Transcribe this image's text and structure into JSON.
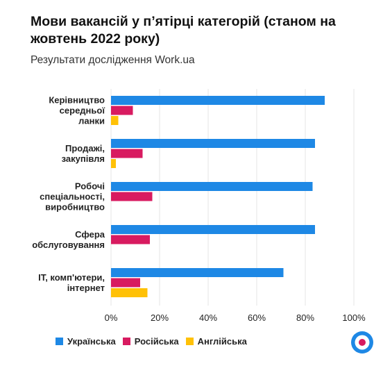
{
  "header": {
    "title": "Мови вакансій у п’ятірці категорій (станом на жовтень 2022 року)",
    "subtitle": "Результати дослідження Work.ua"
  },
  "colors": {
    "ukrainian": "#1e88e5",
    "russian": "#d81b60",
    "english": "#ffc107",
    "grid": "#e6e6e6",
    "text": "#1a1a1a"
  },
  "legend": [
    {
      "label": "Українська",
      "color_key": "ukrainian"
    },
    {
      "label": "Російська",
      "color_key": "russian"
    },
    {
      "label": "Англійська",
      "color_key": "english"
    }
  ],
  "logo": {
    "icon": "work-ua-target-icon"
  },
  "chart_data": {
    "type": "bar",
    "orientation": "horizontal",
    "categories": [
      [
        "Керівництво",
        "середньої",
        "ланки"
      ],
      [
        "Продажі,",
        "закупівля"
      ],
      [
        "Робочі",
        "спеціальності,",
        "виробництво"
      ],
      [
        "Сфера",
        "обслуговування"
      ],
      [
        "IT, комп'ютери,",
        "інтернет"
      ]
    ],
    "series": [
      {
        "name": "Українська",
        "color_key": "ukrainian",
        "values": [
          88,
          84,
          83,
          84,
          71
        ]
      },
      {
        "name": "Російська",
        "color_key": "russian",
        "values": [
          9,
          13,
          17,
          16,
          12
        ]
      },
      {
        "name": "Англійська",
        "color_key": "english",
        "values": [
          3,
          2,
          null,
          null,
          15
        ]
      }
    ],
    "xlim": [
      0,
      100
    ],
    "xticks": [
      "0%",
      "20%",
      "40%",
      "60%",
      "80%",
      "100%"
    ],
    "grid": true,
    "legend_position": "bottom-left"
  }
}
